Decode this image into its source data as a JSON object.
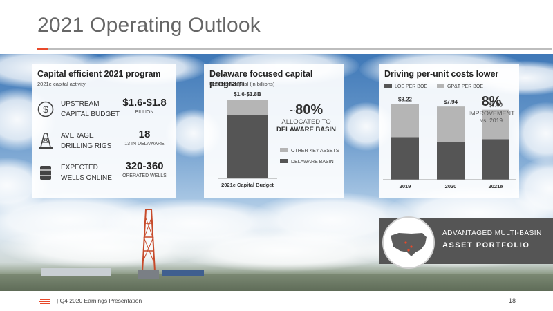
{
  "slide": {
    "title": "2021 Operating Outlook",
    "footer_text": "|   Q4 2020 Earnings Presentation",
    "page_number": "18",
    "accent_color": "#e8492a"
  },
  "panel1": {
    "title": "Capital efficient 2021 program",
    "subtitle": "2021e capital activity",
    "rows": [
      {
        "icon": "dollar-icon",
        "label": "UPSTREAM\nCAPITAL BUDGET",
        "value": "$1.6-$1.8",
        "unit": "BILLION"
      },
      {
        "icon": "drilling-rig-icon",
        "label": "AVERAGE\nDRILLING RIGS",
        "value": "18",
        "unit": "13 IN DELAWARE"
      },
      {
        "icon": "barrel-icon",
        "label": "EXPECTED\nWELLS ONLINE",
        "value": "320-360",
        "unit": "OPERATED WELLS"
      }
    ]
  },
  "panel2": {
    "title": "Delaware focused capital program",
    "subtitle": "Upstream capital (in billions)",
    "callout_prefix": "~",
    "callout_value": "80%",
    "callout_line1": "ALLOCATED TO",
    "callout_line2": "DELAWARE BASIN"
  },
  "panel3": {
    "title": "Driving per-unit costs lower",
    "callout_value": "8%",
    "callout_line1": "IMPROVEMENT",
    "callout_line2": "vs. 2019"
  },
  "portfolio": {
    "line1": "ADVANTAGED MULTI-BASIN",
    "line2": "ASSET PORTFOLIO"
  },
  "chart_data": [
    {
      "type": "bar",
      "stacked": true,
      "categories": [
        "2021e Capital Budget"
      ],
      "total_label": "$1.6-$1.8B",
      "series": [
        {
          "name": "DELAWARE BASIN",
          "values": [
            80
          ],
          "color": "#555555"
        },
        {
          "name": "OTHER KEY ASSETS",
          "values": [
            20
          ],
          "color": "#b5b5b5"
        }
      ],
      "ylim": [
        0,
        100
      ]
    },
    {
      "type": "bar",
      "stacked": true,
      "categories": [
        "2019",
        "2020",
        "2021e"
      ],
      "totals": [
        8.22,
        7.94,
        7.6
      ],
      "total_labels": [
        "$8.22",
        "$7.94",
        "$7.60"
      ],
      "series": [
        {
          "name": "LOE PER BOE",
          "values": [
            4.62,
            4.07,
            4.4
          ],
          "color": "#555555"
        },
        {
          "name": "GP&T PER BOE",
          "values": [
            3.6,
            3.87,
            3.2
          ],
          "color": "#b5b5b5"
        }
      ],
      "ylim": [
        0,
        9
      ],
      "legend_position": "top"
    }
  ]
}
